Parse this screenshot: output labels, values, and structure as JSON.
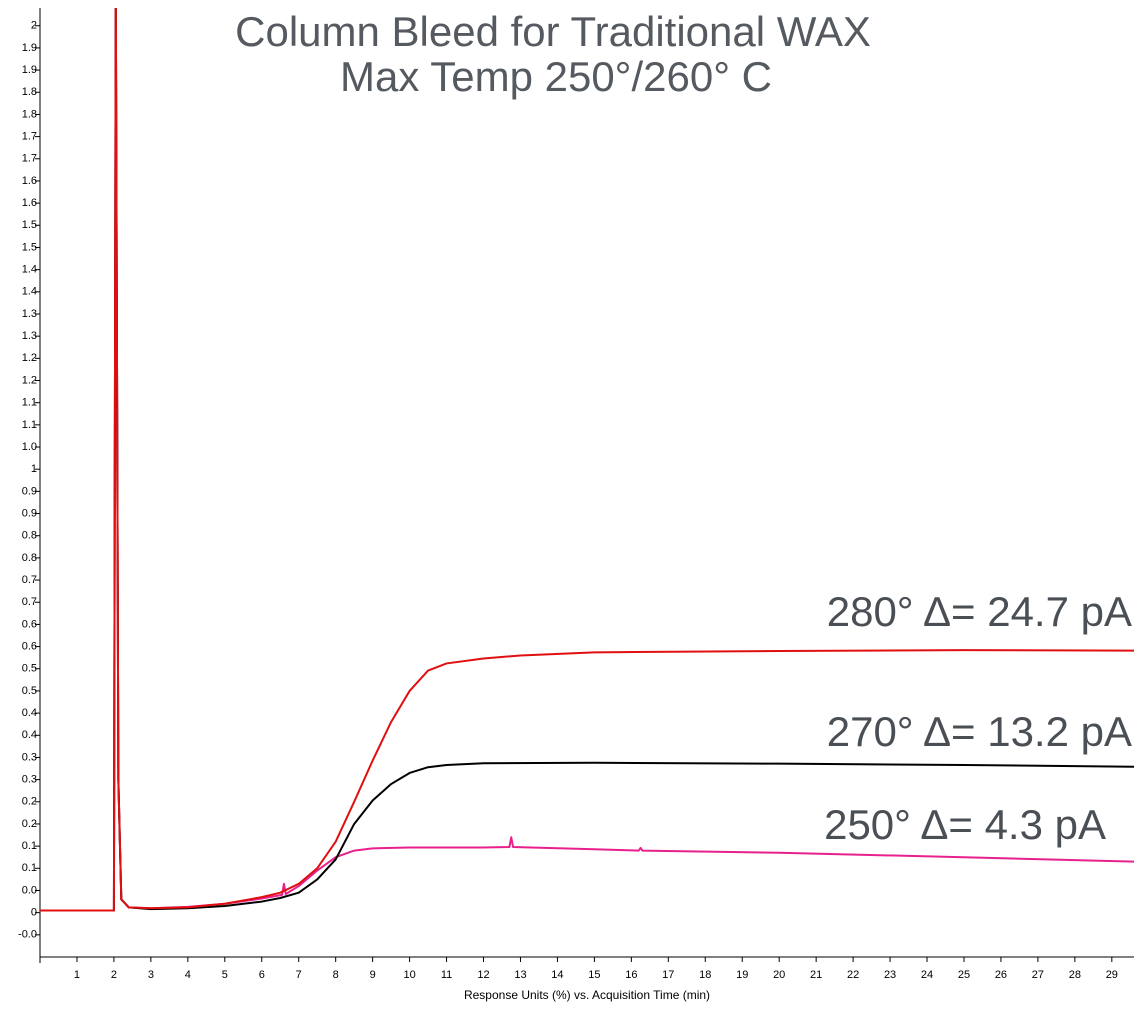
{
  "chart_data": {
    "type": "line",
    "title": [
      "Column Bleed for Traditional WAX",
      "Max Temp 250°/260° C"
    ],
    "x_label": "Response Units (%) vs. Acquisition Time (min)",
    "xlim": [
      0,
      29.6
    ],
    "xticks": [
      1,
      2,
      3,
      4,
      5,
      6,
      7,
      8,
      9,
      10,
      11,
      12,
      13,
      14,
      15,
      16,
      17,
      18,
      19,
      20,
      21,
      22,
      23,
      24,
      25,
      26,
      27,
      28,
      29
    ],
    "ylim": [
      -0.1,
      2.04
    ],
    "yticks": [
      {
        "value": -0.05,
        "label": "-0.0"
      },
      0,
      {
        "value": 0.05,
        "label": "0.0"
      },
      0.1,
      {
        "value": 0.15,
        "label": "0.1"
      },
      0.2,
      {
        "value": 0.25,
        "label": "0.2"
      },
      0.3,
      {
        "value": 0.35,
        "label": "0.3"
      },
      0.4,
      {
        "value": 0.45,
        "label": "0.4"
      },
      0.5,
      {
        "value": 0.55,
        "label": "0.5"
      },
      0.6,
      {
        "value": 0.65,
        "label": "0.6"
      },
      0.7,
      {
        "value": 0.75,
        "label": "0.7"
      },
      0.8,
      {
        "value": 0.85,
        "label": "0.8"
      },
      0.9,
      {
        "value": 0.95,
        "label": "0.9"
      },
      1,
      {
        "value": 1.05,
        "label": "1.0"
      },
      1.1,
      {
        "value": 1.15,
        "label": "1.1"
      },
      1.2,
      {
        "value": 1.25,
        "label": "1.2"
      },
      1.3,
      {
        "value": 1.35,
        "label": "1.3"
      },
      1.4,
      {
        "value": 1.45,
        "label": "1.4"
      },
      1.5,
      {
        "value": 1.55,
        "label": "1.5"
      },
      1.6,
      {
        "value": 1.65,
        "label": "1.6"
      },
      1.7,
      {
        "value": 1.75,
        "label": "1.7"
      },
      1.8,
      {
        "value": 1.85,
        "label": "1.8"
      },
      1.9,
      {
        "value": 1.95,
        "label": "1.9"
      },
      2
    ],
    "grid": false,
    "series": [
      {
        "color": "#e8208e",
        "x": [
          0,
          1,
          2.0,
          2.05,
          2.12,
          2.2,
          2.4,
          3,
          4,
          5,
          6,
          6.55,
          6.6,
          6.65,
          7,
          7.5,
          8,
          8.5,
          9,
          10,
          12,
          12.7,
          12.75,
          12.8,
          15,
          16.2,
          16.25,
          16.3,
          20,
          25,
          29.6
        ],
        "values": [
          0.005,
          0.005,
          0.005,
          2.1,
          0.3,
          0.03,
          0.012,
          0.01,
          0.013,
          0.02,
          0.032,
          0.04,
          0.065,
          0.042,
          0.06,
          0.095,
          0.125,
          0.14,
          0.145,
          0.147,
          0.147,
          0.148,
          0.17,
          0.148,
          0.143,
          0.14,
          0.146,
          0.14,
          0.135,
          0.125,
          0.115
        ]
      },
      {
        "color": "#000000",
        "x": [
          0,
          1,
          2.0,
          2.05,
          2.12,
          2.2,
          2.4,
          3,
          4,
          5,
          6,
          6.5,
          7,
          7.5,
          8,
          8.5,
          9,
          9.5,
          10,
          10.5,
          11,
          12,
          15,
          20,
          25,
          29.6
        ],
        "values": [
          0.005,
          0.005,
          0.005,
          2.1,
          0.3,
          0.03,
          0.012,
          0.008,
          0.01,
          0.015,
          0.025,
          0.033,
          0.045,
          0.075,
          0.12,
          0.2,
          0.253,
          0.29,
          0.315,
          0.328,
          0.333,
          0.337,
          0.338,
          0.336,
          0.333,
          0.329
        ]
      },
      {
        "color": "#e01010",
        "x": [
          0,
          1,
          2.0,
          2.05,
          2.12,
          2.2,
          2.4,
          3,
          4,
          5,
          6,
          6.5,
          7,
          7.5,
          8,
          8.5,
          9,
          9.5,
          10,
          10.5,
          11,
          12,
          13,
          15,
          20,
          25,
          29.6
        ],
        "values": [
          0.005,
          0.005,
          0.005,
          2.1,
          0.3,
          0.03,
          0.012,
          0.01,
          0.012,
          0.02,
          0.035,
          0.045,
          0.065,
          0.1,
          0.16,
          0.25,
          0.343,
          0.43,
          0.5,
          0.546,
          0.562,
          0.573,
          0.58,
          0.587,
          0.59,
          0.592,
          0.591
        ]
      }
    ],
    "annotations": [
      "280° Δ= 24.7 pA",
      "270° Δ= 13.2 pA",
      "250° Δ= 4.3 pA"
    ]
  }
}
